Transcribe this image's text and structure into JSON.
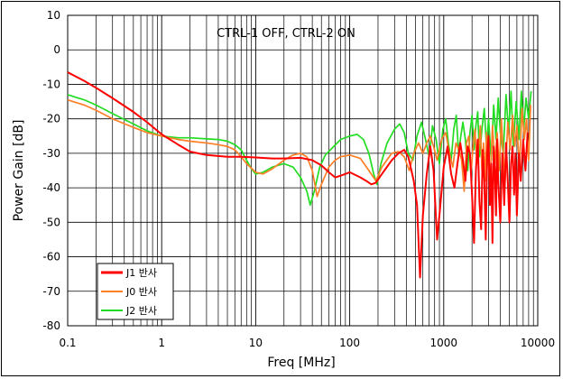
{
  "chart_data": {
    "type": "line",
    "title": "CTRL-1 OFF, CTRL-2 ON",
    "xlabel": "Freq [MHz]",
    "ylabel": "Power Gain [dB]",
    "xscale": "log",
    "xlim": [
      0.1,
      10000
    ],
    "ylim": [
      -80,
      10
    ],
    "x_ticks": [
      "0.1",
      "1",
      "10",
      "100",
      "1000",
      "10000"
    ],
    "y_ticks": [
      "10",
      "0",
      "-10",
      "-20",
      "-30",
      "-40",
      "-50",
      "-60",
      "-70",
      "-80"
    ],
    "grid": true,
    "legend_position": "bottom-left",
    "series": [
      {
        "name": "J1 반사",
        "color": "#ff0000",
        "points": [
          [
            0.1,
            -6.5
          ],
          [
            0.15,
            -9
          ],
          [
            0.2,
            -11
          ],
          [
            0.3,
            -14
          ],
          [
            0.5,
            -18
          ],
          [
            0.7,
            -21
          ],
          [
            1,
            -24.5
          ],
          [
            1.5,
            -27.5
          ],
          [
            2,
            -29.5
          ],
          [
            3,
            -30.5
          ],
          [
            5,
            -31
          ],
          [
            7,
            -31
          ],
          [
            10,
            -31.2
          ],
          [
            15,
            -31.5
          ],
          [
            20,
            -31.5
          ],
          [
            30,
            -31.3
          ],
          [
            40,
            -32
          ],
          [
            50,
            -33.5
          ],
          [
            60,
            -35.5
          ],
          [
            70,
            -37
          ],
          [
            80,
            -36.5
          ],
          [
            100,
            -35.5
          ],
          [
            130,
            -37
          ],
          [
            150,
            -38
          ],
          [
            170,
            -39
          ],
          [
            190,
            -38.5
          ],
          [
            220,
            -36
          ],
          [
            280,
            -32
          ],
          [
            330,
            -30
          ],
          [
            380,
            -29
          ],
          [
            420,
            -31
          ],
          [
            480,
            -38
          ],
          [
            520,
            -45
          ],
          [
            560,
            -66
          ],
          [
            600,
            -48
          ],
          [
            660,
            -36
          ],
          [
            720,
            -28
          ],
          [
            780,
            -35
          ],
          [
            850,
            -55
          ],
          [
            900,
            -48
          ],
          [
            1000,
            -34
          ],
          [
            1100,
            -28
          ],
          [
            1200,
            -36
          ],
          [
            1300,
            -40
          ],
          [
            1400,
            -33
          ],
          [
            1500,
            -27
          ],
          [
            1600,
            -32
          ],
          [
            1700,
            -38
          ],
          [
            1800,
            -28
          ],
          [
            1900,
            -30
          ],
          [
            2000,
            -42
          ],
          [
            2100,
            -56
          ],
          [
            2200,
            -35
          ],
          [
            2300,
            -26
          ],
          [
            2400,
            -44
          ],
          [
            2500,
            -52
          ],
          [
            2600,
            -29
          ],
          [
            2700,
            -38
          ],
          [
            2800,
            -55
          ],
          [
            2900,
            -30
          ],
          [
            3000,
            -25
          ],
          [
            3100,
            -45
          ],
          [
            3200,
            -33
          ],
          [
            3300,
            -56
          ],
          [
            3400,
            -28
          ],
          [
            3500,
            -35
          ],
          [
            3600,
            -48
          ],
          [
            3700,
            -26
          ],
          [
            3800,
            -38
          ],
          [
            4000,
            -50
          ],
          [
            4200,
            -30
          ],
          [
            4400,
            -45
          ],
          [
            4600,
            -27
          ],
          [
            4800,
            -38
          ],
          [
            5000,
            -50
          ],
          [
            5200,
            -33
          ],
          [
            5400,
            -28
          ],
          [
            5600,
            -42
          ],
          [
            5800,
            -30
          ],
          [
            6000,
            -48
          ],
          [
            6300,
            -30
          ],
          [
            6600,
            -38
          ],
          [
            7000,
            -26
          ],
          [
            7400,
            -35
          ],
          [
            7800,
            -24
          ]
        ]
      },
      {
        "name": "J0 반사",
        "color": "#ff7f27",
        "points": [
          [
            0.1,
            -14.5
          ],
          [
            0.15,
            -16
          ],
          [
            0.2,
            -17.5
          ],
          [
            0.3,
            -20
          ],
          [
            0.5,
            -22.5
          ],
          [
            0.7,
            -24
          ],
          [
            1,
            -25
          ],
          [
            1.5,
            -26
          ],
          [
            2,
            -26.5
          ],
          [
            3,
            -27
          ],
          [
            4,
            -27.5
          ],
          [
            5,
            -28
          ],
          [
            6,
            -29
          ],
          [
            7,
            -31
          ],
          [
            8,
            -33
          ],
          [
            10,
            -35.5
          ],
          [
            12,
            -36
          ],
          [
            15,
            -34.5
          ],
          [
            20,
            -32
          ],
          [
            25,
            -30.5
          ],
          [
            30,
            -30
          ],
          [
            35,
            -31
          ],
          [
            40,
            -35
          ],
          [
            45,
            -42.5
          ],
          [
            50,
            -39
          ],
          [
            60,
            -34
          ],
          [
            70,
            -32
          ],
          [
            80,
            -31
          ],
          [
            100,
            -30.5
          ],
          [
            130,
            -31.5
          ],
          [
            160,
            -35
          ],
          [
            190,
            -38
          ],
          [
            220,
            -34
          ],
          [
            280,
            -30
          ],
          [
            330,
            -29.5
          ],
          [
            380,
            -31
          ],
          [
            430,
            -35
          ],
          [
            480,
            -30
          ],
          [
            540,
            -27
          ],
          [
            600,
            -30
          ],
          [
            660,
            -27
          ],
          [
            720,
            -25
          ],
          [
            780,
            -28
          ],
          [
            850,
            -32
          ],
          [
            950,
            -26
          ],
          [
            1050,
            -24
          ],
          [
            1150,
            -30
          ],
          [
            1250,
            -34
          ],
          [
            1350,
            -27
          ],
          [
            1450,
            -29
          ],
          [
            1550,
            -32
          ],
          [
            1650,
            -41
          ],
          [
            1750,
            -27
          ],
          [
            1850,
            -25
          ],
          [
            1950,
            -36
          ],
          [
            2050,
            -28
          ],
          [
            2150,
            -23
          ],
          [
            2250,
            -33
          ],
          [
            2350,
            -29
          ],
          [
            2450,
            -22
          ],
          [
            2550,
            -35
          ],
          [
            2650,
            -27
          ],
          [
            2750,
            -38
          ],
          [
            2850,
            -24
          ],
          [
            2950,
            -30
          ],
          [
            3100,
            -40
          ],
          [
            3300,
            -22
          ],
          [
            3500,
            -33
          ],
          [
            3700,
            -24
          ],
          [
            3900,
            -35
          ],
          [
            4100,
            -20
          ],
          [
            4300,
            -30
          ],
          [
            4500,
            -38
          ],
          [
            4800,
            -21
          ],
          [
            5100,
            -29
          ],
          [
            5400,
            -19
          ],
          [
            5700,
            -28
          ],
          [
            6000,
            -22
          ],
          [
            6400,
            -34
          ],
          [
            6800,
            -17
          ],
          [
            7200,
            -26
          ],
          [
            7600,
            -20
          ],
          [
            8000,
            -32
          ],
          [
            8400,
            -16
          ]
        ]
      },
      {
        "name": "J2 반사",
        "color": "#22dd22",
        "points": [
          [
            0.1,
            -13
          ],
          [
            0.15,
            -14.5
          ],
          [
            0.2,
            -16
          ],
          [
            0.3,
            -18.5
          ],
          [
            0.5,
            -21.5
          ],
          [
            0.7,
            -23.5
          ],
          [
            1,
            -25
          ],
          [
            1.5,
            -25.5
          ],
          [
            2,
            -25.5
          ],
          [
            3,
            -25.8
          ],
          [
            4,
            -26
          ],
          [
            5,
            -26.5
          ],
          [
            6,
            -27.5
          ],
          [
            7,
            -29
          ],
          [
            8,
            -32
          ],
          [
            9,
            -34.5
          ],
          [
            10,
            -36
          ],
          [
            12,
            -35.5
          ],
          [
            15,
            -34
          ],
          [
            20,
            -33
          ],
          [
            25,
            -34
          ],
          [
            30,
            -37
          ],
          [
            35,
            -41
          ],
          [
            38,
            -45
          ],
          [
            42,
            -41
          ],
          [
            48,
            -34
          ],
          [
            55,
            -30.5
          ],
          [
            65,
            -28.5
          ],
          [
            80,
            -26
          ],
          [
            100,
            -25
          ],
          [
            120,
            -24.5
          ],
          [
            140,
            -26
          ],
          [
            160,
            -30
          ],
          [
            180,
            -36
          ],
          [
            195,
            -39
          ],
          [
            215,
            -33
          ],
          [
            250,
            -27
          ],
          [
            300,
            -23
          ],
          [
            340,
            -21.5
          ],
          [
            380,
            -24
          ],
          [
            420,
            -30
          ],
          [
            470,
            -32
          ],
          [
            520,
            -25
          ],
          [
            580,
            -21
          ],
          [
            640,
            -26
          ],
          [
            700,
            -31
          ],
          [
            760,
            -22
          ],
          [
            830,
            -26
          ],
          [
            900,
            -33
          ],
          [
            980,
            -23
          ],
          [
            1050,
            -20
          ],
          [
            1120,
            -27
          ],
          [
            1200,
            -32
          ],
          [
            1280,
            -23
          ],
          [
            1360,
            -19
          ],
          [
            1440,
            -30
          ],
          [
            1520,
            -25
          ],
          [
            1600,
            -21
          ],
          [
            1700,
            -26
          ],
          [
            1800,
            -35
          ],
          [
            1900,
            -24
          ],
          [
            2000,
            -19
          ],
          [
            2100,
            -29
          ],
          [
            2200,
            -22
          ],
          [
            2300,
            -18
          ],
          [
            2400,
            -31
          ],
          [
            2550,
            -23
          ],
          [
            2700,
            -17
          ],
          [
            2850,
            -28
          ],
          [
            3000,
            -20
          ],
          [
            3200,
            -32
          ],
          [
            3400,
            -16
          ],
          [
            3600,
            -26
          ],
          [
            3800,
            -14
          ],
          [
            4000,
            -24
          ],
          [
            4300,
            -30
          ],
          [
            4600,
            -13
          ],
          [
            4900,
            -24
          ],
          [
            5200,
            -12
          ],
          [
            5500,
            -28
          ],
          [
            5900,
            -15
          ],
          [
            6300,
            -26
          ],
          [
            6700,
            -12
          ],
          [
            7100,
            -23
          ],
          [
            7500,
            -14
          ],
          [
            8000,
            -20
          ],
          [
            8500,
            -12
          ]
        ]
      }
    ]
  }
}
